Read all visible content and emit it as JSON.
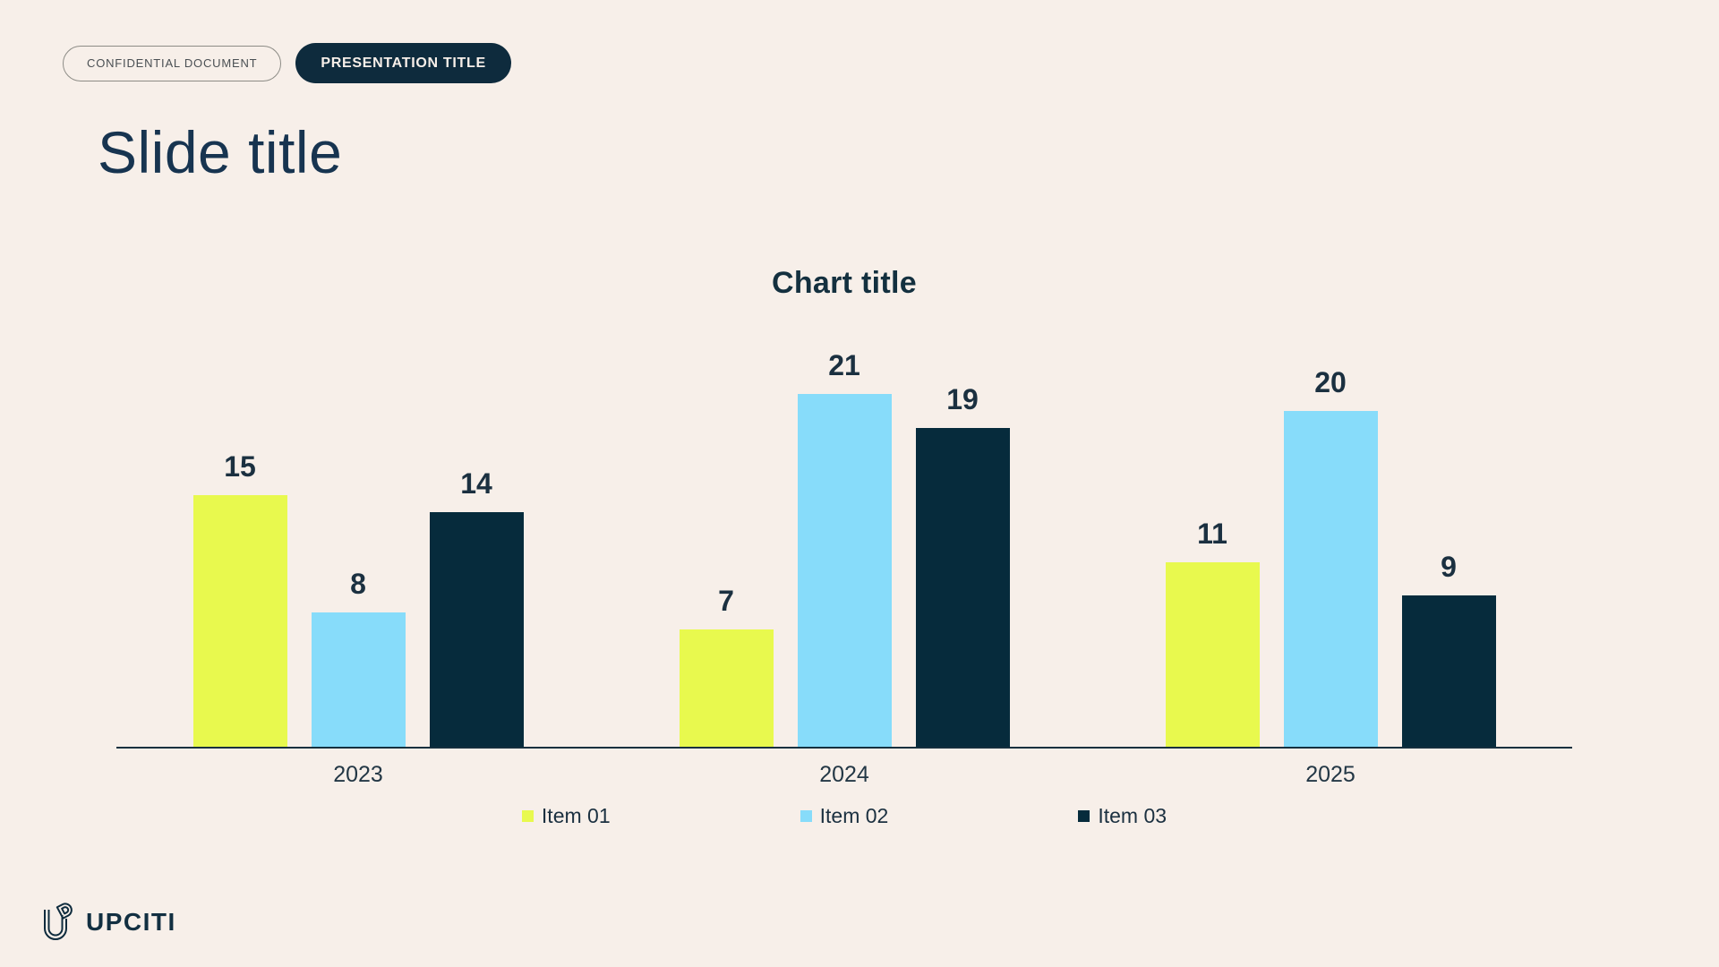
{
  "header": {
    "badge_outline": "CONFIDENTIAL DOCUMENT",
    "badge_filled": "PRESENTATION TITLE"
  },
  "slide": {
    "title": "Slide title"
  },
  "chart_data": {
    "type": "bar",
    "title": "Chart title",
    "categories": [
      "2023",
      "2024",
      "2025"
    ],
    "series": [
      {
        "name": "Item 01",
        "color": "#e8f94e",
        "values": [
          15,
          7,
          11
        ]
      },
      {
        "name": "Item 02",
        "color": "#87dcfa",
        "values": [
          8,
          21,
          20
        ]
      },
      {
        "name": "Item 03",
        "color": "#062b3c",
        "values": [
          14,
          19,
          9
        ]
      }
    ],
    "value_labels": true,
    "ylim": [
      0,
      22.4
    ],
    "xlabel": "",
    "ylabel": "",
    "grid": false,
    "legend_position": "bottom"
  },
  "footer": {
    "logo_text": "UPCITI"
  },
  "colors": {
    "background": "#f7efe9",
    "navy": "#0e2b3d",
    "text_navy": "#1b3040",
    "yellow": "#e8f94e",
    "blue": "#87dcfa",
    "dark_bar": "#062b3c"
  }
}
